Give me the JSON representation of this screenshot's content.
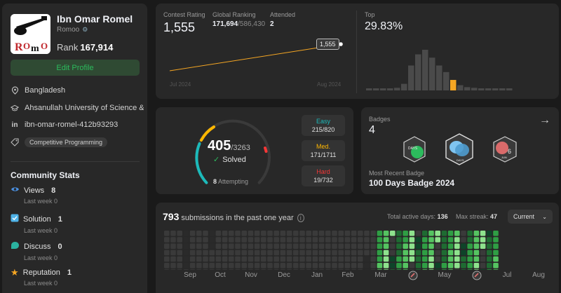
{
  "profile": {
    "name": "Ibn Omar Romel",
    "handle": "Romoo",
    "rank_label": "Rank",
    "rank_value": "167,914",
    "edit_button": "Edit Profile",
    "location": "Bangladesh",
    "university": "Ahsanullah University of Science & ...",
    "linkedin": "ibn-omar-romel-412b93293",
    "skill_tag": "Competitive Programming",
    "avatar_icon": "guitar-logo-icon"
  },
  "community": {
    "title": "Community Stats",
    "stats": [
      {
        "label": "Views",
        "value": "8",
        "sub": "Last week 0",
        "icon": "eye-icon",
        "color": "#4a90e2"
      },
      {
        "label": "Solution",
        "value": "1",
        "sub": "Last week 0",
        "icon": "checkbox-icon",
        "color": "#4fb3e8"
      },
      {
        "label": "Discuss",
        "value": "0",
        "sub": "Last week 0",
        "icon": "chat-icon",
        "color": "#2bb3a0"
      },
      {
        "label": "Reputation",
        "value": "1",
        "sub": "Last week 0",
        "icon": "star-icon",
        "color": "#f5a623"
      }
    ]
  },
  "contest": {
    "rating_label": "Contest Rating",
    "rating_value": "1,555",
    "global_label": "Global Ranking",
    "global_value": "171,694",
    "global_total": "/586,430",
    "attended_label": "Attended",
    "attended_value": "2",
    "top_label": "Top",
    "top_value": "29.83%",
    "tooltip": "1,555",
    "x_start": "Jul 2024",
    "x_end": "Aug 2024",
    "line_color": "#f5a623",
    "highlight_color": "#f5a623"
  },
  "chart_data": {
    "type": "bar",
    "title": "",
    "xlabel": "",
    "ylabel": "",
    "values": [
      2,
      2,
      2,
      3,
      4,
      10,
      38,
      55,
      62,
      50,
      38,
      28,
      16,
      8,
      5,
      4,
      3,
      3,
      2,
      2,
      2
    ],
    "highlight_index": 12,
    "grid": false
  },
  "solved": {
    "count": "405",
    "total": "/3263",
    "label": "Solved",
    "attempting_num": "8",
    "attempting_label": "Attempting",
    "easy_label": "Easy",
    "easy_value": "215/820",
    "easy_color": "#1cbaba",
    "med_label": "Med.",
    "med_value": "171/1711",
    "med_color": "#ffb700",
    "hard_label": "Hard",
    "hard_value": "19/732",
    "hard_color": "#f63737"
  },
  "badges": {
    "label": "Badges",
    "count": "4",
    "recent_label": "Most Recent Badge",
    "recent_name": "100 Days Badge 2024",
    "badge_texts": [
      "DAYS",
      "DAYS",
      "JUN",
      "6"
    ]
  },
  "submissions": {
    "count": "793",
    "title_suffix": "submissions in the past one year",
    "active_label": "Total active days:",
    "active_value": "136",
    "streak_label": "Max streak:",
    "streak_value": "47",
    "dropdown": "Current",
    "months": [
      "Sep",
      "Oct",
      "Nov",
      "Dec",
      "Jan",
      "Feb",
      "Mar",
      "",
      "May",
      "",
      "Jul",
      "Aug"
    ]
  }
}
